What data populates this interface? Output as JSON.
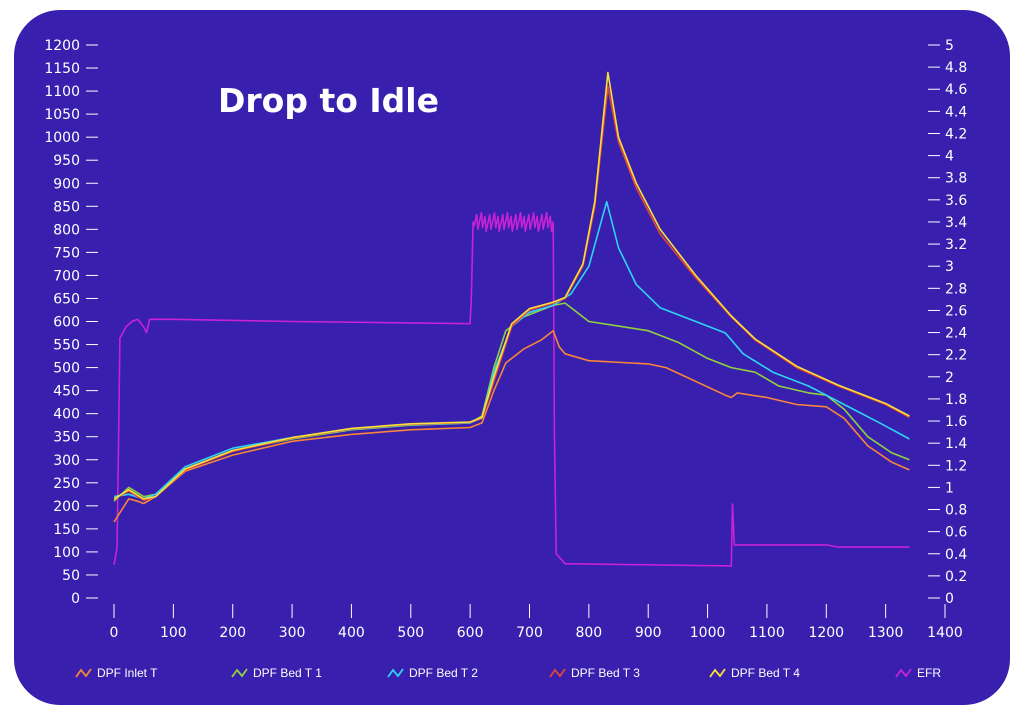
{
  "chart_data": {
    "type": "line",
    "title": "Drop to Idle",
    "xlim": [
      0,
      1400
    ],
    "x_ticks": [
      "0",
      "100",
      "200",
      "300",
      "400",
      "500",
      "600",
      "700",
      "800",
      "900",
      "1000",
      "1100",
      "1200",
      "1300",
      "1400"
    ],
    "ylim_left": [
      0,
      1200
    ],
    "y_ticks_left": [
      "0",
      "50",
      "100",
      "150",
      "200",
      "250",
      "300",
      "350",
      "400",
      "450",
      "500",
      "550",
      "600",
      "650",
      "700",
      "750",
      "800",
      "850",
      "900",
      "950",
      "1000",
      "1050",
      "1100",
      "1150",
      "1200"
    ],
    "ylim_right": [
      0,
      5
    ],
    "y_ticks_right": [
      "0",
      "0.2",
      "0.4",
      "0.6",
      "0.8",
      "1",
      "1.2",
      "1.4",
      "1.6",
      "1.8",
      "2",
      "2.2",
      "2.4",
      "2.6",
      "2.8",
      "3",
      "3.2",
      "3.4",
      "3.6",
      "3.8",
      "4",
      "4.2",
      "4.4",
      "4.6",
      "4.8",
      "5"
    ],
    "grid": false,
    "legend_position": "bottom",
    "background": "#381fad",
    "series": [
      {
        "name": "DPF Inlet T",
        "axis": "left",
        "color": "#f7853a",
        "points": [
          [
            0,
            165
          ],
          [
            10,
            185
          ],
          [
            25,
            215
          ],
          [
            40,
            210
          ],
          [
            50,
            205
          ],
          [
            70,
            220
          ],
          [
            120,
            275
          ],
          [
            200,
            310
          ],
          [
            300,
            340
          ],
          [
            400,
            355
          ],
          [
            500,
            365
          ],
          [
            600,
            370
          ],
          [
            620,
            380
          ],
          [
            640,
            450
          ],
          [
            660,
            510
          ],
          [
            690,
            540
          ],
          [
            720,
            560
          ],
          [
            740,
            580
          ],
          [
            750,
            545
          ],
          [
            760,
            530
          ],
          [
            800,
            515
          ],
          [
            900,
            508
          ],
          [
            930,
            500
          ],
          [
            980,
            470
          ],
          [
            1030,
            440
          ],
          [
            1040,
            435
          ],
          [
            1050,
            445
          ],
          [
            1100,
            435
          ],
          [
            1150,
            420
          ],
          [
            1200,
            415
          ],
          [
            1230,
            390
          ],
          [
            1270,
            330
          ],
          [
            1310,
            295
          ],
          [
            1340,
            278
          ]
        ]
      },
      {
        "name": "DPF Bed T 1",
        "axis": "left",
        "color": "#8fd13f",
        "points": [
          [
            0,
            210
          ],
          [
            25,
            240
          ],
          [
            50,
            220
          ],
          [
            70,
            225
          ],
          [
            120,
            280
          ],
          [
            200,
            320
          ],
          [
            300,
            345
          ],
          [
            400,
            365
          ],
          [
            500,
            375
          ],
          [
            600,
            380
          ],
          [
            620,
            395
          ],
          [
            640,
            500
          ],
          [
            660,
            580
          ],
          [
            690,
            610
          ],
          [
            720,
            625
          ],
          [
            740,
            635
          ],
          [
            760,
            640
          ],
          [
            800,
            600
          ],
          [
            850,
            590
          ],
          [
            900,
            580
          ],
          [
            950,
            555
          ],
          [
            1000,
            520
          ],
          [
            1040,
            500
          ],
          [
            1080,
            490
          ],
          [
            1120,
            460
          ],
          [
            1170,
            445
          ],
          [
            1200,
            440
          ],
          [
            1230,
            410
          ],
          [
            1270,
            350
          ],
          [
            1310,
            315
          ],
          [
            1340,
            300
          ]
        ]
      },
      {
        "name": "DPF Bed T 2",
        "axis": "left",
        "color": "#2fd3f5",
        "points": [
          [
            0,
            220
          ],
          [
            25,
            225
          ],
          [
            50,
            215
          ],
          [
            70,
            225
          ],
          [
            120,
            285
          ],
          [
            200,
            325
          ],
          [
            300,
            348
          ],
          [
            400,
            366
          ],
          [
            500,
            376
          ],
          [
            600,
            380
          ],
          [
            620,
            390
          ],
          [
            640,
            490
          ],
          [
            670,
            590
          ],
          [
            700,
            620
          ],
          [
            740,
            635
          ],
          [
            770,
            660
          ],
          [
            800,
            720
          ],
          [
            830,
            860
          ],
          [
            850,
            760
          ],
          [
            880,
            680
          ],
          [
            920,
            630
          ],
          [
            980,
            600
          ],
          [
            1030,
            575
          ],
          [
            1060,
            530
          ],
          [
            1110,
            490
          ],
          [
            1170,
            460
          ],
          [
            1200,
            440
          ],
          [
            1230,
            420
          ],
          [
            1290,
            380
          ],
          [
            1340,
            345
          ]
        ]
      },
      {
        "name": "DPF Bed T 3",
        "axis": "left",
        "color": "#e0493a",
        "points": [
          [
            0,
            215
          ],
          [
            25,
            232
          ],
          [
            50,
            212
          ],
          [
            70,
            220
          ],
          [
            120,
            278
          ],
          [
            200,
            318
          ],
          [
            300,
            347
          ],
          [
            400,
            367
          ],
          [
            500,
            377
          ],
          [
            600,
            381
          ],
          [
            620,
            390
          ],
          [
            640,
            470
          ],
          [
            670,
            590
          ],
          [
            700,
            625
          ],
          [
            740,
            640
          ],
          [
            760,
            650
          ],
          [
            790,
            720
          ],
          [
            810,
            850
          ],
          [
            832,
            1110
          ],
          [
            850,
            990
          ],
          [
            880,
            890
          ],
          [
            920,
            790
          ],
          [
            980,
            695
          ],
          [
            1040,
            610
          ],
          [
            1080,
            560
          ],
          [
            1150,
            500
          ],
          [
            1220,
            460
          ],
          [
            1300,
            420
          ],
          [
            1340,
            392
          ]
        ]
      },
      {
        "name": "DPF Bed T 4",
        "axis": "left",
        "color": "#f8e23a",
        "points": [
          [
            0,
            215
          ],
          [
            25,
            235
          ],
          [
            50,
            215
          ],
          [
            70,
            220
          ],
          [
            120,
            280
          ],
          [
            200,
            320
          ],
          [
            300,
            348
          ],
          [
            400,
            368
          ],
          [
            500,
            378
          ],
          [
            600,
            382
          ],
          [
            620,
            392
          ],
          [
            640,
            480
          ],
          [
            670,
            595
          ],
          [
            700,
            628
          ],
          [
            740,
            642
          ],
          [
            760,
            652
          ],
          [
            790,
            725
          ],
          [
            810,
            860
          ],
          [
            832,
            1140
          ],
          [
            850,
            1000
          ],
          [
            880,
            900
          ],
          [
            920,
            800
          ],
          [
            980,
            700
          ],
          [
            1040,
            612
          ],
          [
            1080,
            562
          ],
          [
            1150,
            503
          ],
          [
            1220,
            462
          ],
          [
            1300,
            422
          ],
          [
            1340,
            395
          ]
        ]
      },
      {
        "name": "EFR",
        "axis": "right",
        "color": "#c822d6",
        "points": [
          [
            0,
            0.3
          ],
          [
            5,
            0.45
          ],
          [
            8,
            1.5
          ],
          [
            10,
            2.35
          ],
          [
            20,
            2.45
          ],
          [
            30,
            2.5
          ],
          [
            40,
            2.52
          ],
          [
            50,
            2.45
          ],
          [
            55,
            2.4
          ],
          [
            60,
            2.52
          ],
          [
            100,
            2.52
          ],
          [
            300,
            2.5
          ],
          [
            600,
            2.48
          ],
          [
            602,
            2.7
          ],
          [
            605,
            3.4
          ],
          [
            740,
            3.4
          ],
          [
            742,
            1.5
          ],
          [
            745,
            0.4
          ],
          [
            760,
            0.31
          ],
          [
            1040,
            0.29
          ],
          [
            1042,
            0.85
          ],
          [
            1045,
            0.48
          ],
          [
            1200,
            0.48
          ],
          [
            1220,
            0.46
          ],
          [
            1340,
            0.46
          ]
        ]
      }
    ]
  }
}
